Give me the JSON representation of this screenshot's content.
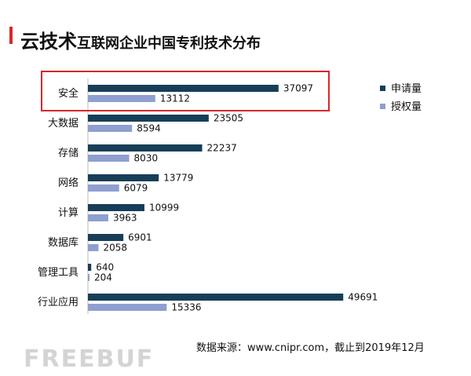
{
  "title_main": "云技术",
  "title_sub": "互联网企业中国专利技术分布",
  "source_note": "数据来源：www.cnipr.com，截止到2019年12月",
  "watermark_text": "FREEBUF",
  "colors": {
    "series_0": "#173e58",
    "series_1": "#8e9fd0",
    "highlight": "#d9262c"
  },
  "chart_data": {
    "type": "bar",
    "orientation": "horizontal",
    "categories": [
      "安全",
      "大数据",
      "存储",
      "网络",
      "计算",
      "数据库",
      "管理工具",
      "行业应用"
    ],
    "series": [
      {
        "name": "申请量",
        "values": [
          37097,
          23505,
          22237,
          13779,
          10999,
          6901,
          640,
          49691
        ]
      },
      {
        "name": "授权量",
        "values": [
          13112,
          8594,
          8030,
          6079,
          3963,
          2058,
          204,
          15336
        ]
      }
    ],
    "xlim": [
      0,
      55000
    ],
    "legend_position": "right",
    "data_labels": true,
    "grid": false,
    "highlighted_category": "安全"
  }
}
